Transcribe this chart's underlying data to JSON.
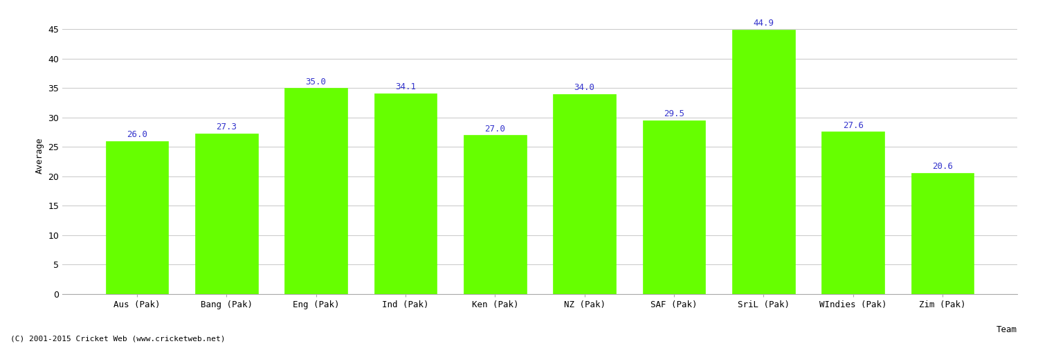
{
  "categories": [
    "Aus (Pak)",
    "Bang (Pak)",
    "Eng (Pak)",
    "Ind (Pak)",
    "Ken (Pak)",
    "NZ (Pak)",
    "SAF (Pak)",
    "SriL (Pak)",
    "WIndies (Pak)",
    "Zim (Pak)"
  ],
  "values": [
    26.0,
    27.3,
    35.0,
    34.1,
    27.0,
    34.0,
    29.5,
    44.9,
    27.6,
    20.6
  ],
  "bar_color": "#66ff00",
  "bar_edge_color": "#66ff00",
  "label_color": "#3333cc",
  "xlabel": "Team",
  "ylabel": "Average",
  "ylim": [
    0,
    47
  ],
  "yticks": [
    0,
    5,
    10,
    15,
    20,
    25,
    30,
    35,
    40,
    45
  ],
  "grid_color": "#cccccc",
  "bg_color": "#ffffff",
  "footer": "(C) 2001-2015 Cricket Web (www.cricketweb.net)",
  "label_fontsize": 9,
  "axis_fontsize": 9,
  "footer_fontsize": 8
}
